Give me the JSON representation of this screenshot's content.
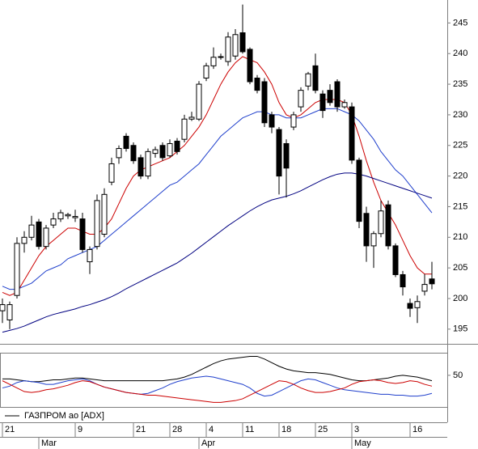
{
  "chart_data": {
    "type": "candlestick",
    "legend_label": "ГАЗПРОМ ао [ADX]",
    "up_color": "#ffffff",
    "down_color": "#000000",
    "categories": [
      "21",
      null,
      null,
      null,
      null,
      null,
      null,
      null,
      null,
      null,
      "9",
      null,
      null,
      null,
      null,
      null,
      null,
      null,
      "21",
      null,
      null,
      null,
      null,
      "28",
      null,
      null,
      null,
      null,
      "4",
      null,
      null,
      null,
      null,
      "11",
      null,
      null,
      null,
      null,
      "18",
      null,
      null,
      null,
      null,
      "25",
      null,
      null,
      null,
      null,
      "3",
      null,
      null,
      null,
      null,
      null,
      null,
      null,
      "16",
      null,
      null,
      null,
      null
    ],
    "months": [
      null,
      null,
      null,
      null,
      null,
      "Mar",
      null,
      null,
      null,
      null,
      null,
      null,
      null,
      null,
      null,
      null,
      null,
      null,
      null,
      null,
      null,
      null,
      null,
      null,
      null,
      null,
      null,
      "Apr",
      null,
      null,
      null,
      null,
      null,
      null,
      null,
      null,
      null,
      null,
      null,
      null,
      null,
      null,
      null,
      null,
      null,
      null,
      null,
      null,
      "May",
      null,
      null,
      null,
      null,
      null,
      null,
      null,
      null,
      null,
      null,
      null
    ],
    "open": [
      198,
      196.5,
      200.5,
      209,
      210,
      212.5,
      208.5,
      212,
      213,
      213.5,
      213.2,
      213,
      206,
      208.5,
      210.5,
      219,
      223,
      226.5,
      225,
      223,
      220,
      223.7,
      225,
      223.3,
      225.7,
      226,
      229.3,
      229.3,
      236,
      238,
      239.4,
      238.7,
      239.6,
      243.4,
      240.7,
      236,
      235.4,
      230,
      227.6,
      225.3,
      228,
      231.3,
      234.7,
      238,
      233.4,
      234,
      235.4,
      231.3,
      231.3,
      222.6,
      213.9,
      208.6,
      210.6,
      215.3,
      208.6,
      203.9,
      199.2,
      198.5,
      201.2,
      203.2
    ],
    "high": [
      200,
      199.5,
      210,
      211,
      213.5,
      213,
      212,
      214,
      214.5,
      214,
      214.5,
      214,
      208.5,
      217,
      218,
      223,
      225,
      227,
      225.5,
      223.5,
      224.5,
      224.8,
      225.5,
      226,
      226.2,
      230,
      230.5,
      235.5,
      238.5,
      241,
      240,
      243.5,
      244,
      248,
      241,
      236.5,
      236,
      230.5,
      228,
      226,
      230.5,
      234.5,
      237,
      240,
      234,
      235,
      235.8,
      232.5,
      232,
      223,
      215,
      211,
      216,
      216,
      209,
      204.5,
      200,
      200.5,
      204,
      206
    ],
    "low": [
      196,
      195,
      200,
      207.5,
      209.5,
      208,
      208,
      211.5,
      212.5,
      213,
      212.5,
      207.5,
      204,
      208,
      210,
      218.5,
      222,
      224,
      222,
      219.5,
      219.5,
      223,
      222.5,
      223,
      223.5,
      225.5,
      229,
      229,
      235.5,
      237.5,
      239,
      238,
      239,
      240,
      235,
      233.5,
      228,
      227,
      217,
      216.5,
      227.5,
      230.5,
      234,
      233.5,
      229.5,
      231.5,
      230.5,
      231,
      222,
      211.5,
      206,
      205,
      210,
      208,
      203.5,
      200.5,
      197,
      196,
      200.5,
      201.5
    ],
    "close": [
      199,
      199,
      209,
      210,
      212,
      208.5,
      211.5,
      213,
      214,
      213.7,
      213.4,
      208,
      208,
      216,
      217,
      222,
      224.5,
      224.5,
      222.5,
      220,
      224,
      224.3,
      223,
      225.3,
      224,
      229.3,
      229.6,
      235,
      238,
      239.4,
      239.5,
      242.7,
      243.1,
      240.3,
      235.4,
      234,
      228.7,
      228,
      220,
      221.3,
      230,
      234,
      236.7,
      234,
      230.7,
      232,
      231.3,
      232,
      222.6,
      212.6,
      208.6,
      210.6,
      214.3,
      208.6,
      203.9,
      201.9,
      198.4,
      199.5,
      202.3,
      202.4
    ],
    "overlays": [
      {
        "color": "#cc0000",
        "values": [
          201,
          200.5,
          201,
          203,
          205,
          207,
          208.5,
          209.5,
          210.5,
          211.5,
          211.5,
          211,
          210.5,
          210.5,
          211.5,
          213,
          215.5,
          218,
          220,
          221,
          221.5,
          222,
          222.5,
          223,
          224,
          225,
          226.5,
          228,
          230,
          232.5,
          235,
          237,
          238.5,
          239.5,
          239,
          238.5,
          237,
          235,
          232,
          230,
          229.5,
          230,
          231,
          232,
          232.5,
          232.5,
          232.5,
          232,
          230,
          226.5,
          222.5,
          219,
          216,
          214,
          212,
          209.5,
          207,
          205,
          204,
          204
        ]
      },
      {
        "color": "#1f3fcc",
        "values": [
          202,
          201.5,
          201.5,
          202,
          202.5,
          203.5,
          204.5,
          205,
          205.5,
          206.5,
          207,
          207.5,
          208,
          208.5,
          209.5,
          210.5,
          211.5,
          212.5,
          213.5,
          214.5,
          215.5,
          216.5,
          217.5,
          218.5,
          219,
          220,
          221,
          222,
          223.5,
          225,
          226.5,
          227.5,
          228.5,
          229.5,
          230,
          230.5,
          230.5,
          230,
          230,
          229.5,
          229.5,
          229.5,
          230,
          230.5,
          231,
          231,
          231,
          230.5,
          230,
          229,
          227.5,
          226,
          224,
          222.5,
          221,
          220,
          218.5,
          217,
          215.5,
          214
        ]
      },
      {
        "color": "#000080",
        "values": [
          194.5,
          194.8,
          195.1,
          195.5,
          196,
          196.5,
          197,
          197.4,
          197.7,
          198,
          198.3,
          198.7,
          199,
          199.4,
          199.8,
          200.3,
          200.9,
          201.6,
          202.2,
          202.8,
          203.4,
          204,
          204.6,
          205.2,
          205.8,
          206.6,
          207.4,
          208.3,
          209.2,
          210.1,
          211,
          211.9,
          212.7,
          213.5,
          214.3,
          215,
          215.6,
          216.1,
          216.4,
          216.7,
          217.1,
          217.6,
          218.2,
          218.8,
          219.4,
          219.9,
          220.3,
          220.5,
          220.5,
          220.3,
          220,
          219.6,
          219.2,
          218.8,
          218.4,
          218,
          217.6,
          217.2,
          216.8,
          216.4
        ]
      }
    ],
    "ylim": [
      192.6,
      248.75
    ],
    "yticks": [
      195,
      200,
      205,
      210,
      215,
      220,
      225,
      230,
      235,
      240,
      245
    ],
    "indicator": {
      "type": "line",
      "ylim": [
        15,
        75
      ],
      "yticks": [
        50
      ],
      "series": [
        {
          "color": "#000000",
          "values": [
            46,
            46,
            45,
            44,
            43,
            43,
            44,
            45,
            45,
            46,
            47,
            47,
            46,
            45,
            44,
            44,
            44,
            44,
            44,
            44,
            44,
            44,
            44,
            45,
            46,
            48,
            51,
            55,
            59,
            63,
            66,
            68,
            69,
            70,
            71,
            71,
            68,
            64,
            60,
            57,
            55,
            54,
            53,
            53,
            52,
            51,
            49,
            47,
            45,
            44,
            44,
            45,
            46,
            47,
            49,
            50,
            49,
            48,
            46,
            44
          ]
        },
        {
          "color": "#1f3fcc",
          "values": [
            36,
            38,
            42,
            44,
            43,
            42,
            40,
            40,
            42,
            44,
            45,
            46,
            44,
            40,
            37,
            35,
            33,
            31,
            30,
            29,
            30,
            33,
            36,
            40,
            43,
            45,
            47,
            48,
            49,
            48,
            46,
            44,
            42,
            40,
            36,
            30,
            27,
            28,
            32,
            36,
            40,
            44,
            46,
            45,
            42,
            39,
            36,
            34,
            33,
            32,
            31,
            30,
            29,
            29,
            28,
            28,
            27,
            27,
            28,
            30
          ]
        },
        {
          "color": "#cc0000",
          "values": [
            44,
            40,
            36,
            32,
            31,
            32,
            34,
            35,
            37,
            39,
            42,
            44,
            43,
            40,
            37,
            35,
            33,
            31,
            30,
            29,
            28,
            28,
            27,
            26,
            25,
            24,
            23,
            22,
            21,
            20,
            20,
            21,
            22,
            24,
            28,
            32,
            36,
            40,
            44,
            43,
            40,
            36,
            33,
            31,
            31,
            32,
            34,
            36,
            40,
            43,
            44,
            45,
            44,
            42,
            41,
            42,
            44,
            43,
            40,
            38
          ]
        }
      ]
    }
  }
}
